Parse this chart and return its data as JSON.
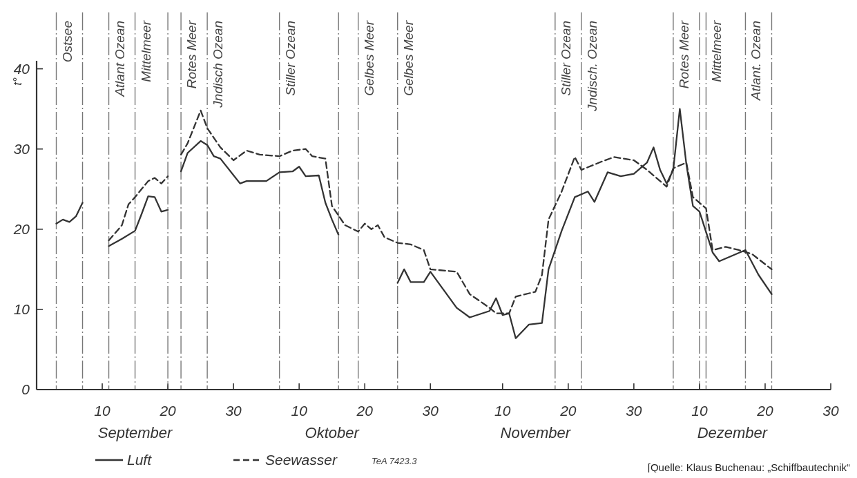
{
  "chart_data": {
    "type": "line",
    "ylabel": "t°",
    "xlim": [
      "--08-31",
      "--12-30"
    ],
    "ylim": [
      0,
      41
    ],
    "xticks": [
      {
        "value": "--09-10",
        "label": "10"
      },
      {
        "value": "--09-20",
        "label": "20"
      },
      {
        "value": "--09-30",
        "label": "30"
      },
      {
        "value": "--10-10",
        "label": "10"
      },
      {
        "value": "--10-20",
        "label": "20"
      },
      {
        "value": "--10-30",
        "label": "30"
      },
      {
        "value": "--11-10",
        "label": "10"
      },
      {
        "value": "--11-20",
        "label": "20"
      },
      {
        "value": "--11-30",
        "label": "30"
      },
      {
        "value": "--12-10",
        "label": "10"
      },
      {
        "value": "--12-20",
        "label": "20"
      },
      {
        "value": "--12-30",
        "label": "30"
      }
    ],
    "yticks": [
      0,
      10,
      20,
      30,
      40
    ],
    "legend": "bottom",
    "series": [
      {
        "name": "Luft",
        "color": "#333333",
        "line_style": "solid",
        "x": [
          "--09-03",
          "--09-04",
          "--09-05",
          "--09-06",
          "--09-07",
          "--09-09",
          "--09-11",
          "--09-13",
          "--09-15",
          "--09-16",
          "--09-17",
          "--09-18",
          "--09-19",
          "--09-20",
          "--09-21",
          "--09-22",
          "--09-23",
          "--09-25",
          "--09-26",
          "--09-27",
          "--09-28",
          "--10-01",
          "--10-02",
          "--10-05",
          "--10-07",
          "--10-09",
          "--10-10",
          "--10-11",
          "--10-13",
          "--10-14",
          "--10-15",
          "--10-16",
          "--10-20",
          "--10-25",
          "--10-26",
          "--10-27",
          "--10-29",
          "--10-30",
          "--11-03",
          "--11-05",
          "--11-08",
          "--11-09",
          "--11-10",
          "--11-11",
          "--11-12",
          "--11-14",
          "--11-16",
          "--11-17",
          "--11-19",
          "--11-21",
          "--11-23",
          "--11-24",
          "--11-26",
          "--11-28",
          "--11-30",
          "--12-02",
          "--12-03",
          "--12-04",
          "--12-05",
          "--12-06",
          "--12-07",
          "--12-08",
          "--12-09",
          "--12-10",
          "--12-12",
          "--12-13",
          "--12-17",
          "--12-19",
          "--12-21"
        ],
        "values": [
          20.7,
          21.2,
          20.9,
          21.6,
          23.3,
          null,
          17.9,
          18.8,
          19.8,
          21.9,
          24.1,
          24.0,
          22.2,
          22.4,
          null,
          27.2,
          29.5,
          31.0,
          30.5,
          29.1,
          28.8,
          25.7,
          26.0,
          26.0,
          27.1,
          27.2,
          27.8,
          26.6,
          26.7,
          23.3,
          21.2,
          19.3,
          null,
          13.3,
          15.0,
          13.4,
          13.4,
          14.7,
          10.2,
          9.0,
          9.8,
          11.4,
          9.3,
          9.5,
          6.4,
          8.1,
          8.3,
          15.0,
          19.8,
          24.0,
          24.7,
          23.4,
          27.1,
          26.6,
          26.9,
          28.3,
          30.2,
          27.4,
          25.7,
          27.4,
          35.0,
          28.1,
          22.9,
          22.2,
          17.1,
          16.0,
          17.4,
          14.3,
          11.9
        ]
      },
      {
        "name": "Seewasser",
        "color": "#333333",
        "line_style": "dashed",
        "x": [
          "--09-11",
          "--09-13",
          "--09-14",
          "--09-15",
          "--09-17",
          "--09-18",
          "--09-19",
          "--09-20",
          "--09-21",
          "--09-22",
          "--09-23",
          "--09-25",
          "--09-26",
          "--09-28",
          "--09-30",
          "--10-02",
          "--10-04",
          "--10-07",
          "--10-09",
          "--10-11",
          "--10-12",
          "--10-14",
          "--10-15",
          "--10-17",
          "--10-19",
          "--10-20",
          "--10-21",
          "--10-22",
          "--10-23",
          "--10-25",
          "--10-27",
          "--10-29",
          "--10-30",
          "--11-03",
          "--11-05",
          "--11-08",
          "--11-09",
          "--11-11",
          "--11-12",
          "--11-15",
          "--11-16",
          "--11-17",
          "--11-19",
          "--11-21",
          "--11-22",
          "--11-25",
          "--11-27",
          "--11-30",
          "--12-02",
          "--12-05",
          "--12-06",
          "--12-08",
          "--12-09",
          "--12-11",
          "--12-12",
          "--12-14",
          "--12-16",
          "--12-18",
          "--12-21"
        ],
        "values": [
          18.6,
          20.5,
          23.1,
          24.0,
          26.0,
          26.4,
          25.7,
          26.6,
          null,
          29.3,
          30.7,
          34.8,
          32.6,
          30.2,
          28.6,
          29.8,
          29.3,
          29.1,
          29.8,
          30.0,
          29.1,
          28.8,
          22.9,
          20.5,
          19.7,
          20.7,
          20.0,
          20.5,
          19.0,
          18.3,
          18.1,
          17.4,
          15.0,
          14.7,
          11.9,
          10.2,
          9.5,
          9.5,
          11.6,
          12.2,
          14.3,
          21.2,
          24.7,
          29.0,
          27.4,
          28.4,
          29.0,
          28.6,
          27.4,
          25.3,
          27.6,
          28.3,
          24.0,
          22.6,
          17.4,
          17.8,
          17.4,
          16.9,
          15.0
        ]
      }
    ],
    "ref_lines": [
      {
        "axis": "x",
        "value": "--09-03",
        "label": "Ostsee"
      },
      {
        "axis": "x",
        "value": "--09-07"
      },
      {
        "axis": "x",
        "value": "--09-11",
        "label": "Atlant Ozean"
      },
      {
        "axis": "x",
        "value": "--09-15",
        "label": "Mittelmeer"
      },
      {
        "axis": "x",
        "value": "--09-20"
      },
      {
        "axis": "x",
        "value": "--09-22",
        "label": "Rotes Meer"
      },
      {
        "axis": "x",
        "value": "--09-26",
        "label": "Jndisch Ozean"
      },
      {
        "axis": "x",
        "value": "--10-07",
        "label": "Stiller Ozean"
      },
      {
        "axis": "x",
        "value": "--10-16"
      },
      {
        "axis": "x",
        "value": "--10-19",
        "label": "Gelbes Meer"
      },
      {
        "axis": "x",
        "value": "--10-25",
        "label": "Gelbes Meer"
      },
      {
        "axis": "x",
        "value": "--11-18",
        "label": "Stiller Ozean"
      },
      {
        "axis": "x",
        "value": "--11-22",
        "label": "Jndisch. Ozean"
      },
      {
        "axis": "x",
        "value": "--12-06",
        "label": "Rotes Meer"
      },
      {
        "axis": "x",
        "value": "--12-10"
      },
      {
        "axis": "x",
        "value": "--12-11",
        "label": "Mittelmeer"
      },
      {
        "axis": "x",
        "value": "--12-17",
        "label": "Atlant. Ozean"
      },
      {
        "axis": "x",
        "value": "--12-21"
      }
    ],
    "annotations": [
      "September",
      "Oktober",
      "November",
      "Dezember",
      "TeA 7423.3",
      "[Quelle: Klaus Buchenau: „Schiffbautechnik“"
    ]
  }
}
